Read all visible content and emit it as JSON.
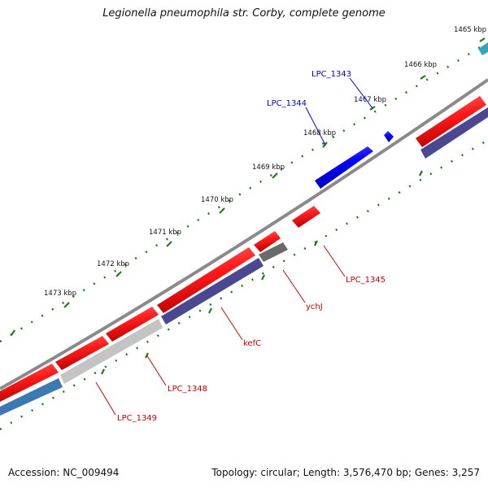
{
  "title": "Legionella pneumophila str. Corby, complete genome",
  "footer": {
    "accession": "Accession: NC_009494",
    "summary": "Topology: circular; Length: 3,576,470 bp; Genes: 3,257"
  },
  "ruler": {
    "tick_labels": [
      "1465 kbp",
      "1466 kbp",
      "1467 kbp",
      "1468 kbp",
      "1469 kbp",
      "1470 kbp",
      "1471 kbp",
      "1472 kbp",
      "1473 kbp"
    ],
    "color": "#1f7a1f"
  },
  "genes": [
    {
      "label": "LPC_1343",
      "strand": "+",
      "color": "#0000ff"
    },
    {
      "label": "LPC_1344",
      "strand": "+",
      "color": "#0000ff"
    },
    {
      "label": "LPC_1345",
      "strand": "-",
      "color": "#e00000"
    },
    {
      "label": "ychJ",
      "strand": "-",
      "color": "#e00000"
    },
    {
      "label": "kefC",
      "strand": "-",
      "color": "#e00000"
    },
    {
      "label": "LPC_1348",
      "strand": "-",
      "color": "#e00000"
    },
    {
      "label": "LPC_1349",
      "strand": "-",
      "color": "#e00000"
    }
  ],
  "colors": {
    "backbone": "#8a8a8a",
    "forward_gene": "#0000ff",
    "reverse_gene": "#ff1a1a",
    "cog_purple": "#4b4891",
    "cog_gray_dark": "#6a6a6a",
    "cog_gray_light": "#c4c4c4",
    "cog_blue": "#3c78b4",
    "cog_teal": "#2fa8b4"
  }
}
